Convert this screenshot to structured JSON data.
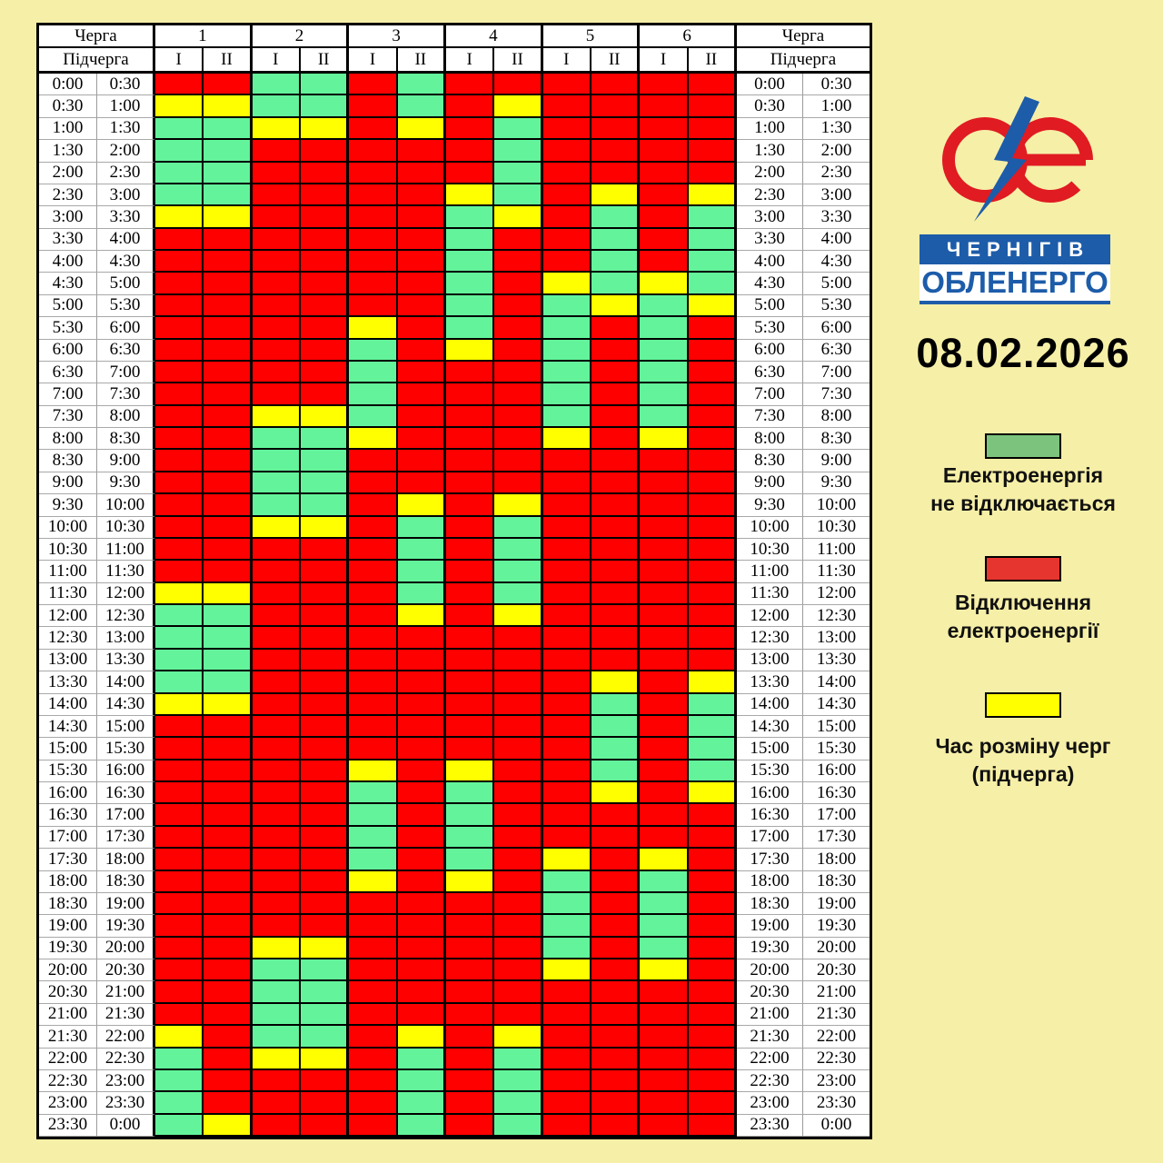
{
  "colors": {
    "background": "#F6EFA7",
    "cell_red": "#FF0000",
    "cell_green": "#63F49B",
    "cell_yellow": "#FFFF00",
    "legend_green": "#7CC47E",
    "legend_red": "#E6352F",
    "legend_yellow": "#FFFF00",
    "logo_red": "#E01B22",
    "logo_blue": "#1D5CA9"
  },
  "table": {
    "queue_header_label": "Черга",
    "subqueue_header_label": "Підчерга",
    "queues": [
      "1",
      "2",
      "3",
      "4",
      "5",
      "6"
    ],
    "subqueue_labels": [
      "I",
      "II"
    ],
    "legend_key": {
      "R": "cell_red",
      "G": "cell_green",
      "Y": "cell_yellow"
    },
    "rows": [
      {
        "start": "0:00",
        "end": "0:30",
        "cells": "RRGGRGRRRRRR"
      },
      {
        "start": "0:30",
        "end": "1:00",
        "cells": "YYGGRGRYRRRR"
      },
      {
        "start": "1:00",
        "end": "1:30",
        "cells": "GGYYRYRGRRRR"
      },
      {
        "start": "1:30",
        "end": "2:00",
        "cells": "GGRRRRRGRRRR"
      },
      {
        "start": "2:00",
        "end": "2:30",
        "cells": "GGRRRRRGRRRR"
      },
      {
        "start": "2:30",
        "end": "3:00",
        "cells": "GGRRRRYGRYRY"
      },
      {
        "start": "3:00",
        "end": "3:30",
        "cells": "YYRRRRGYRGRG"
      },
      {
        "start": "3:30",
        "end": "4:00",
        "cells": "RRRRRRGRRGRG"
      },
      {
        "start": "4:00",
        "end": "4:30",
        "cells": "RRRRRRGRRGRG"
      },
      {
        "start": "4:30",
        "end": "5:00",
        "cells": "RRRRRRGRYGYG"
      },
      {
        "start": "5:00",
        "end": "5:30",
        "cells": "RRRRRRGRGYGY"
      },
      {
        "start": "5:30",
        "end": "6:00",
        "cells": "RRRRYRGRGRGR"
      },
      {
        "start": "6:00",
        "end": "6:30",
        "cells": "RRRRGRYRGRGR"
      },
      {
        "start": "6:30",
        "end": "7:00",
        "cells": "RRRRGRRRGRGR"
      },
      {
        "start": "7:00",
        "end": "7:30",
        "cells": "RRRRGRRRGRGR"
      },
      {
        "start": "7:30",
        "end": "8:00",
        "cells": "RRYYGRRRGRGR"
      },
      {
        "start": "8:00",
        "end": "8:30",
        "cells": "RRGGYRRRYRYR"
      },
      {
        "start": "8:30",
        "end": "9:00",
        "cells": "RRGGRRRRRRRR"
      },
      {
        "start": "9:00",
        "end": "9:30",
        "cells": "RRGGRRRRRRRR"
      },
      {
        "start": "9:30",
        "end": "10:00",
        "cells": "RRGGRYRYRRRR"
      },
      {
        "start": "10:00",
        "end": "10:30",
        "cells": "RRYYRGRGRRRR"
      },
      {
        "start": "10:30",
        "end": "11:00",
        "cells": "RRRRRGRGRRRR"
      },
      {
        "start": "11:00",
        "end": "11:30",
        "cells": "RRRRRGRGRRRR"
      },
      {
        "start": "11:30",
        "end": "12:00",
        "cells": "YYRRRGRGRRRR"
      },
      {
        "start": "12:00",
        "end": "12:30",
        "cells": "GGRRRYRYRRRR"
      },
      {
        "start": "12:30",
        "end": "13:00",
        "cells": "GGRRRRRRRRRR"
      },
      {
        "start": "13:00",
        "end": "13:30",
        "cells": "GGRRRRRRRRRR"
      },
      {
        "start": "13:30",
        "end": "14:00",
        "cells": "GGRRRRRRRYRY"
      },
      {
        "start": "14:00",
        "end": "14:30",
        "cells": "YYRRRRRRRGRG"
      },
      {
        "start": "14:30",
        "end": "15:00",
        "cells": "RRRRRRRRRGRG"
      },
      {
        "start": "15:00",
        "end": "15:30",
        "cells": "RRRRRRRRRGRG"
      },
      {
        "start": "15:30",
        "end": "16:00",
        "cells": "RRRRYRYRRGRG"
      },
      {
        "start": "16:00",
        "end": "16:30",
        "cells": "RRRRGRGRRYRY"
      },
      {
        "start": "16:30",
        "end": "17:00",
        "cells": "RRRRGRGRRRRR"
      },
      {
        "start": "17:00",
        "end": "17:30",
        "cells": "RRRRGRGRRRRR"
      },
      {
        "start": "17:30",
        "end": "18:00",
        "cells": "RRRRGRGRYRYR"
      },
      {
        "start": "18:00",
        "end": "18:30",
        "cells": "RRRRYRYRGRGR"
      },
      {
        "start": "18:30",
        "end": "19:00",
        "cells": "RRRRRRRRGRGR"
      },
      {
        "start": "19:00",
        "end": "19:30",
        "cells": "RRRRRRRRGRGR"
      },
      {
        "start": "19:30",
        "end": "20:00",
        "cells": "RRYYRRRRGRGR"
      },
      {
        "start": "20:00",
        "end": "20:30",
        "cells": "RRGGRRRRYRYR"
      },
      {
        "start": "20:30",
        "end": "21:00",
        "cells": "RRGGRRRRRRRR"
      },
      {
        "start": "21:00",
        "end": "21:30",
        "cells": "RRGGRRRRRRRR"
      },
      {
        "start": "21:30",
        "end": "22:00",
        "cells": "YRGGRYRYRRRR"
      },
      {
        "start": "22:00",
        "end": "22:30",
        "cells": "GRYYRGRGRRRR"
      },
      {
        "start": "22:30",
        "end": "23:00",
        "cells": "GRRRRGRGRRRR"
      },
      {
        "start": "23:00",
        "end": "23:30",
        "cells": "GRRRRGRGRRRR"
      },
      {
        "start": "23:30",
        "end": "0:00",
        "cells": "GYRRRGRGRRRR"
      }
    ]
  },
  "logo": {
    "city": "ЧЕРНІГІВ",
    "company": "ОБЛЕНЕРГО",
    "monogram": "Oe-lightning"
  },
  "date_label": "08.02.2026",
  "legend": [
    {
      "swatch": "legend_green",
      "lines": [
        "Електроенергія",
        "не відключається"
      ]
    },
    {
      "swatch": "legend_red",
      "lines": [
        "Відключення",
        "електроенергії"
      ]
    },
    {
      "swatch": "legend_yellow",
      "lines": [
        "Час розміну черг",
        "(підчерга)"
      ]
    }
  ]
}
